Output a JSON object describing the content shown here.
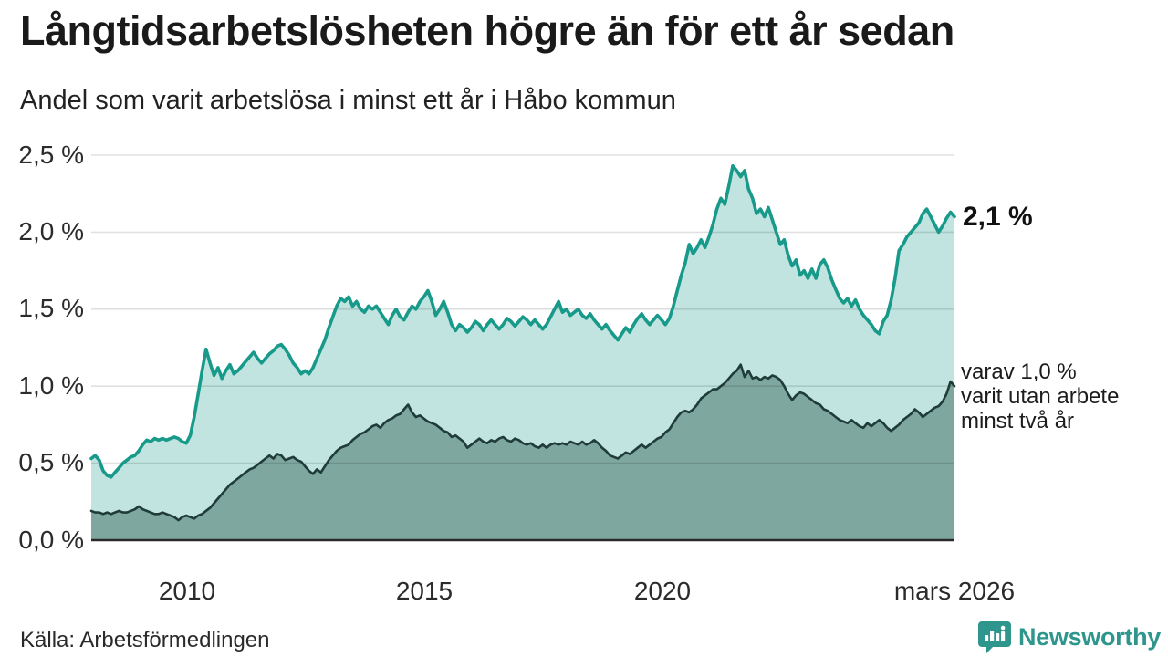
{
  "header": {
    "title": "Långtidsarbetslösheten högre än för ett år sedan",
    "subtitle": "Andel som varit arbetslösa i minst ett år i Håbo kommun"
  },
  "annotations": {
    "latest_total": "2,1 %",
    "secondary_lines": [
      "varav 1,0 %",
      "varit utan arbete",
      "minst två år"
    ]
  },
  "footer": {
    "source": "Källa: Arbetsförmedlingen",
    "brand": "Newsworthy"
  },
  "colors": {
    "brand_teal": "#2e968c",
    "line_primary": "#189a8b",
    "fill_primary": "#199a8c",
    "line_secondary": "#203c38",
    "fill_secondary": "#7ea79f",
    "gridline": "#e0e0e0",
    "axis_baseline": "#2a2a2a"
  },
  "chart_data": {
    "type": "area",
    "title": "Långtidsarbetslösheten högre än för ett år sedan",
    "subtitle": "Andel som varit arbetslösa i minst ett år i Håbo kommun",
    "x_unit": "month",
    "x_start": "2008-01",
    "x_end": "2026-03",
    "ylim": [
      0,
      2.62
    ],
    "grid": true,
    "y_tick_values": [
      2.5,
      2.0,
      1.5,
      1.0,
      0.5,
      0.0
    ],
    "y_tick_labels": [
      "2,5 %",
      "2,0 %",
      "1,5 %",
      "1,0 %",
      "0,5 %",
      "0,0 %"
    ],
    "x_tick_labels": [
      "2010",
      "2015",
      "2020",
      "mars 2026"
    ],
    "x_tick_month_index": [
      24,
      84,
      144,
      218
    ],
    "series": [
      {
        "name": "Andel arbetslösa minst ett år",
        "latest_value": 2.1,
        "values": [
          0.53,
          0.55,
          0.52,
          0.45,
          0.42,
          0.41,
          0.44,
          0.47,
          0.5,
          0.52,
          0.54,
          0.55,
          0.58,
          0.62,
          0.65,
          0.64,
          0.66,
          0.65,
          0.66,
          0.65,
          0.66,
          0.67,
          0.66,
          0.64,
          0.63,
          0.68,
          0.8,
          0.95,
          1.1,
          1.24,
          1.15,
          1.07,
          1.12,
          1.05,
          1.1,
          1.14,
          1.08,
          1.1,
          1.13,
          1.16,
          1.19,
          1.22,
          1.18,
          1.15,
          1.18,
          1.21,
          1.23,
          1.26,
          1.27,
          1.24,
          1.2,
          1.15,
          1.12,
          1.08,
          1.1,
          1.08,
          1.12,
          1.18,
          1.24,
          1.3,
          1.38,
          1.45,
          1.52,
          1.57,
          1.55,
          1.58,
          1.52,
          1.55,
          1.5,
          1.48,
          1.52,
          1.5,
          1.52,
          1.48,
          1.44,
          1.4,
          1.46,
          1.5,
          1.45,
          1.43,
          1.48,
          1.52,
          1.5,
          1.55,
          1.58,
          1.62,
          1.55,
          1.46,
          1.5,
          1.55,
          1.48,
          1.4,
          1.36,
          1.4,
          1.38,
          1.35,
          1.38,
          1.42,
          1.4,
          1.36,
          1.4,
          1.43,
          1.4,
          1.37,
          1.4,
          1.44,
          1.42,
          1.39,
          1.42,
          1.45,
          1.43,
          1.4,
          1.43,
          1.4,
          1.37,
          1.4,
          1.45,
          1.5,
          1.55,
          1.48,
          1.5,
          1.46,
          1.48,
          1.5,
          1.46,
          1.44,
          1.47,
          1.43,
          1.4,
          1.37,
          1.4,
          1.36,
          1.33,
          1.3,
          1.34,
          1.38,
          1.35,
          1.4,
          1.44,
          1.47,
          1.43,
          1.4,
          1.43,
          1.46,
          1.43,
          1.4,
          1.44,
          1.52,
          1.62,
          1.72,
          1.8,
          1.92,
          1.86,
          1.9,
          1.95,
          1.9,
          1.97,
          2.05,
          2.15,
          2.22,
          2.18,
          2.3,
          2.43,
          2.4,
          2.36,
          2.4,
          2.28,
          2.22,
          2.12,
          2.15,
          2.1,
          2.16,
          2.08,
          2.0,
          1.92,
          1.95,
          1.85,
          1.78,
          1.82,
          1.72,
          1.75,
          1.7,
          1.76,
          1.7,
          1.79,
          1.82,
          1.77,
          1.69,
          1.63,
          1.57,
          1.54,
          1.57,
          1.52,
          1.56,
          1.5,
          1.46,
          1.43,
          1.4,
          1.36,
          1.34,
          1.42,
          1.46,
          1.56,
          1.7,
          1.88,
          1.92,
          1.97,
          2.0,
          2.03,
          2.06,
          2.12,
          2.15,
          2.1,
          2.05,
          2.0,
          2.04,
          2.09,
          2.13,
          2.1
        ]
      },
      {
        "name": "varav arbetslösa minst två år",
        "latest_value": 1.0,
        "values": [
          0.19,
          0.18,
          0.18,
          0.17,
          0.18,
          0.17,
          0.18,
          0.19,
          0.18,
          0.18,
          0.19,
          0.2,
          0.22,
          0.2,
          0.19,
          0.18,
          0.17,
          0.17,
          0.18,
          0.17,
          0.16,
          0.15,
          0.13,
          0.15,
          0.16,
          0.15,
          0.14,
          0.16,
          0.17,
          0.19,
          0.21,
          0.24,
          0.27,
          0.3,
          0.33,
          0.36,
          0.38,
          0.4,
          0.42,
          0.44,
          0.46,
          0.47,
          0.49,
          0.51,
          0.53,
          0.55,
          0.53,
          0.56,
          0.55,
          0.52,
          0.53,
          0.54,
          0.52,
          0.51,
          0.48,
          0.45,
          0.43,
          0.46,
          0.44,
          0.48,
          0.52,
          0.55,
          0.58,
          0.6,
          0.61,
          0.62,
          0.65,
          0.67,
          0.69,
          0.7,
          0.72,
          0.74,
          0.75,
          0.73,
          0.76,
          0.78,
          0.79,
          0.81,
          0.82,
          0.85,
          0.88,
          0.83,
          0.8,
          0.81,
          0.79,
          0.77,
          0.76,
          0.75,
          0.73,
          0.71,
          0.7,
          0.67,
          0.68,
          0.66,
          0.64,
          0.6,
          0.62,
          0.64,
          0.66,
          0.64,
          0.63,
          0.65,
          0.64,
          0.66,
          0.67,
          0.65,
          0.64,
          0.66,
          0.65,
          0.63,
          0.62,
          0.63,
          0.61,
          0.6,
          0.62,
          0.6,
          0.62,
          0.63,
          0.62,
          0.63,
          0.62,
          0.64,
          0.63,
          0.62,
          0.64,
          0.62,
          0.63,
          0.65,
          0.63,
          0.6,
          0.58,
          0.55,
          0.54,
          0.53,
          0.55,
          0.57,
          0.56,
          0.58,
          0.6,
          0.62,
          0.6,
          0.62,
          0.64,
          0.66,
          0.67,
          0.7,
          0.72,
          0.76,
          0.8,
          0.83,
          0.84,
          0.83,
          0.85,
          0.88,
          0.92,
          0.94,
          0.96,
          0.98,
          0.98,
          1.0,
          1.02,
          1.05,
          1.08,
          1.1,
          1.14,
          1.06,
          1.1,
          1.05,
          1.06,
          1.04,
          1.06,
          1.05,
          1.07,
          1.06,
          1.04,
          1.0,
          0.95,
          0.91,
          0.94,
          0.96,
          0.95,
          0.93,
          0.91,
          0.89,
          0.88,
          0.85,
          0.84,
          0.82,
          0.8,
          0.78,
          0.77,
          0.76,
          0.78,
          0.76,
          0.74,
          0.73,
          0.76,
          0.74,
          0.76,
          0.78,
          0.76,
          0.73,
          0.71,
          0.73,
          0.75,
          0.78,
          0.8,
          0.82,
          0.85,
          0.83,
          0.8,
          0.82,
          0.84,
          0.86,
          0.87,
          0.9,
          0.95,
          1.03,
          1.0
        ]
      }
    ]
  }
}
